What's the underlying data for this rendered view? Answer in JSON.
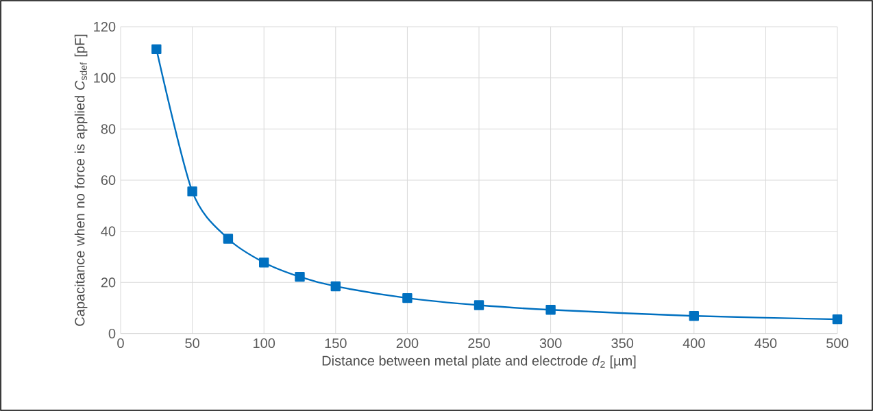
{
  "chart_data": {
    "type": "line",
    "xlabel": "Distance between metal plate and electrode *d*$_{2}$ [µm]",
    "ylabel": "Capacitance when no force is applied *C*$_{sdef}$ [pF]",
    "x": [
      25,
      50,
      75,
      100,
      125,
      150,
      200,
      250,
      300,
      400,
      500
    ],
    "series": [
      {
        "color": "#0070c0",
        "values": [
          111.2,
          55.6,
          37.1,
          27.8,
          22.2,
          18.5,
          13.9,
          11.1,
          9.3,
          6.9,
          5.6
        ]
      }
    ],
    "xlim": [
      0,
      500
    ],
    "xticks": [
      0,
      50,
      100,
      150,
      200,
      250,
      300,
      350,
      400,
      450,
      500
    ],
    "ylim": [
      0,
      120
    ],
    "yticks": [
      0,
      20,
      40,
      60,
      80,
      100,
      120
    ],
    "grid": true,
    "marker": "square",
    "line_style": "solid"
  }
}
